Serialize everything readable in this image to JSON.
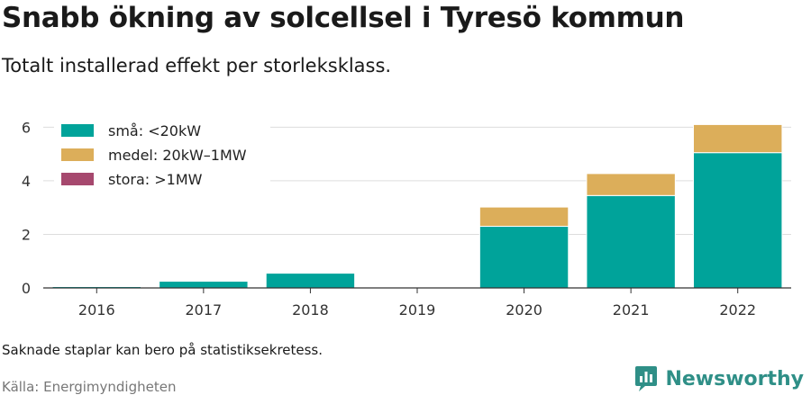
{
  "header": {
    "title": "Snabb ökning av solcellsel i Tyresö kommun",
    "subtitle": "Totalt installerad effekt per storleksklass."
  },
  "footer": {
    "note": "Saknade staplar kan bero på statistiksekretess.",
    "source": "Källa: Energimyndigheten",
    "brand": "Newsworthy"
  },
  "colors": {
    "small": "#00a39a",
    "medium": "#dcae5a",
    "large": "#a6486e",
    "grid": "#dddddd",
    "brand": "#2f8f87"
  },
  "chart_data": {
    "type": "bar",
    "stacked": true,
    "categories": [
      "2016",
      "2017",
      "2018",
      "2019",
      "2020",
      "2021",
      "2022"
    ],
    "series": [
      {
        "name": "små: <20kW",
        "color": "#00a39a",
        "values": [
          0.05,
          0.25,
          0.55,
          0,
          2.3,
          3.45,
          5.05
        ]
      },
      {
        "name": "medel: 20kW–1MW",
        "color": "#dcae5a",
        "values": [
          0,
          0,
          0,
          0,
          0.72,
          0.82,
          1.05
        ]
      },
      {
        "name": "stora: >1MW",
        "color": "#a6486e",
        "values": [
          0,
          0,
          0,
          0,
          0,
          0,
          0
        ]
      }
    ],
    "yticks": [
      0,
      2,
      4,
      6
    ],
    "ylim": [
      0,
      6.45
    ],
    "grid": true,
    "legend_position": "top-left"
  }
}
